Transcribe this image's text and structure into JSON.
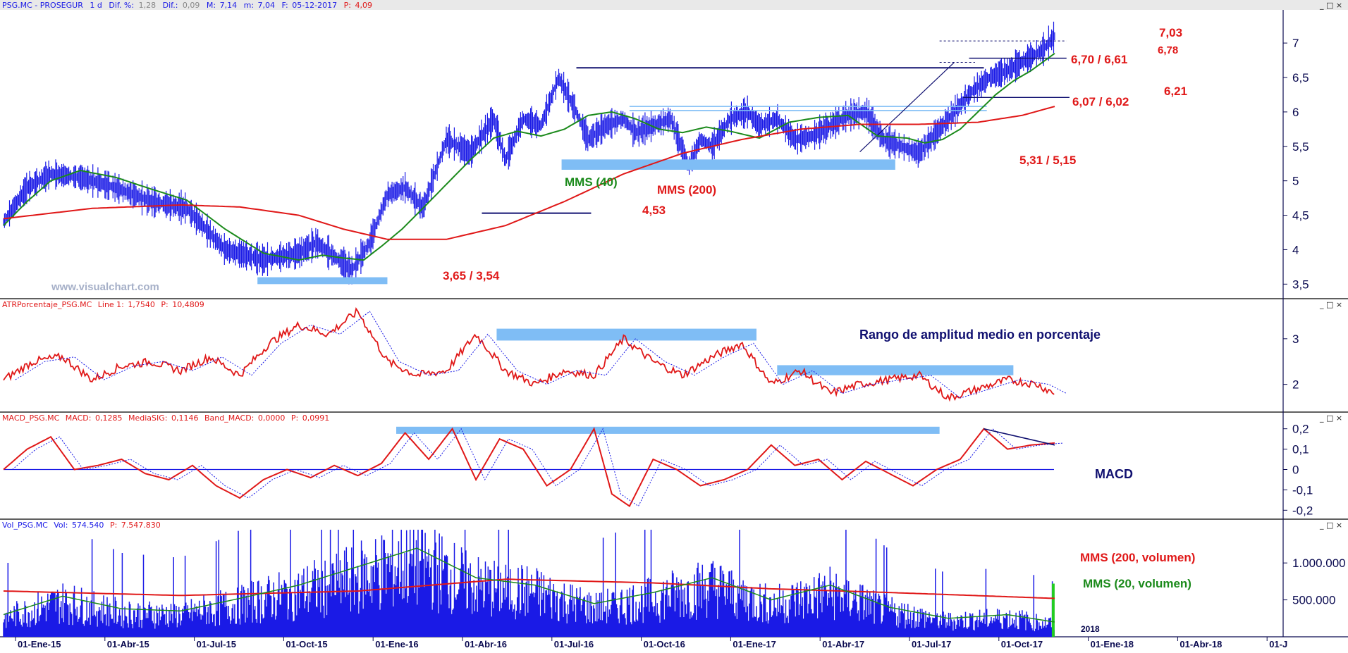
{
  "colors": {
    "price": "#1a1ae6",
    "mms_long": "#e01818",
    "mms_short": "#1b8a1b",
    "support": "#7fbdf5",
    "axis": "#0a0a50",
    "annotation_red": "#e01818",
    "annotation_green": "#1b8a1b",
    "annotation_navy": "#101070",
    "watermark": "#a6b0c8"
  },
  "chart_data": [
    {
      "type": "line",
      "header": {
        "symbol": "PSG.MC - PROSEGUR",
        "interval": "1 d",
        "dif_pct_label": "Dif. %:",
        "dif_pct": "1,28",
        "dif_label": "Dif.:",
        "dif": "0,09",
        "max_label": "M:",
        "max": "7,14",
        "min_label": "m:",
        "min": "7,04",
        "date_label": "F:",
        "date": "05-12-2017",
        "price_label": "P:",
        "price": "4,09"
      },
      "watermark": "www.visualchart.com",
      "y_ticks": [
        "3,5",
        "4",
        "4,5",
        "5",
        "5,5",
        "6",
        "6,5",
        "7"
      ],
      "ylim": [
        3.35,
        7.4
      ],
      "series": [
        {
          "name": "MMS (40)",
          "color": "#1b8a1b",
          "x": [
            0,
            8,
            16,
            26,
            38,
            50,
            62,
            75,
            88,
            100,
            108,
            115,
            122,
            128,
            135,
            142,
            150,
            158,
            166,
            174,
            182,
            190,
            198,
            206,
            214,
            222,
            230,
            238,
            246,
            256,
            266,
            276,
            286,
            296,
            306,
            312,
            318,
            324,
            330,
            336,
            342,
            348,
            356
          ],
          "values": [
            4.35,
            4.7,
            5.0,
            5.15,
            5.05,
            4.88,
            4.72,
            4.3,
            3.95,
            3.85,
            3.92,
            3.88,
            3.85,
            4.05,
            4.3,
            4.6,
            4.95,
            5.3,
            5.62,
            5.72,
            5.65,
            5.75,
            5.95,
            6.0,
            5.9,
            5.75,
            5.7,
            5.78,
            5.72,
            5.62,
            5.85,
            5.92,
            5.95,
            5.65,
            5.62,
            5.55,
            5.6,
            5.75,
            6.0,
            6.25,
            6.45,
            6.6,
            6.85
          ]
        },
        {
          "name": "MMS (200)",
          "color": "#e01818",
          "x": [
            0,
            30,
            60,
            80,
            100,
            115,
            130,
            150,
            170,
            190,
            210,
            230,
            250,
            270,
            290,
            310,
            330,
            345,
            356
          ],
          "values": [
            4.45,
            4.6,
            4.65,
            4.62,
            4.5,
            4.3,
            4.15,
            4.15,
            4.35,
            4.7,
            5.1,
            5.4,
            5.6,
            5.75,
            5.82,
            5.82,
            5.85,
            5.95,
            6.08
          ]
        }
      ],
      "annotations": {
        "mms40_label": "MMS (40)",
        "mms200_label": "MMS (200)",
        "lvl_703": "7,03",
        "lvl_678": "6,78",
        "lvl_670_661": "6,70 / 6,61",
        "lvl_621": "6,21",
        "lvl_607_602": "6,07 / 6,02",
        "lvl_531_515": "5,31 / 5,15",
        "lvl_453": "4,53",
        "lvl_365_354": "3,65 / 3,54"
      }
    },
    {
      "type": "line",
      "header": {
        "title": "ATRPorcentaje_PSG.MC",
        "line_label": "Line 1:",
        "line_value": "1,7540",
        "price_label": "P:",
        "price": "10,4809"
      },
      "annotation": "Rango de amplitud medio en porcentaje",
      "y_ticks": [
        "2",
        "3"
      ],
      "ylim": [
        1.5,
        3.6
      ],
      "series": [
        {
          "name": "Line 1",
          "color": "#e01818",
          "x": [
            0,
            10,
            20,
            30,
            40,
            50,
            60,
            70,
            80,
            90,
            100,
            110,
            120,
            130,
            140,
            150,
            160,
            170,
            180,
            190,
            200,
            210,
            220,
            230,
            240,
            250,
            260,
            270,
            280,
            290,
            300,
            310,
            320,
            330,
            340,
            350,
            356
          ],
          "values": [
            2.1,
            2.5,
            2.6,
            2.1,
            2.4,
            2.5,
            2.3,
            2.6,
            2.2,
            2.9,
            3.3,
            3.1,
            3.6,
            2.5,
            2.2,
            2.3,
            3.1,
            2.3,
            2.0,
            2.3,
            2.2,
            3.0,
            2.5,
            2.2,
            2.6,
            2.9,
            2.0,
            2.3,
            1.8,
            2.0,
            2.1,
            2.2,
            1.7,
            1.9,
            2.1,
            2.0,
            1.8
          ]
        }
      ]
    },
    {
      "type": "line",
      "header": {
        "title": "MACD_PSG.MC",
        "macd_label": "MACD:",
        "macd": "0,1285",
        "signal_label": "MediaSIG:",
        "signal": "0,1146",
        "band_label": "Band_MACD:",
        "band": "0,0000",
        "price_label": "P:",
        "price": "0,0991"
      },
      "annotation": "MACD",
      "y_ticks": [
        "-0,2",
        "-0,1",
        "0",
        "0,1",
        "0,2"
      ],
      "ylim": [
        -0.23,
        0.23
      ],
      "series": [
        {
          "name": "MACD",
          "color": "#e01818",
          "x": [
            0,
            8,
            16,
            24,
            32,
            40,
            48,
            56,
            64,
            72,
            80,
            88,
            96,
            104,
            112,
            120,
            128,
            136,
            144,
            152,
            160,
            168,
            176,
            184,
            192,
            200,
            206,
            212,
            220,
            228,
            236,
            244,
            252,
            260,
            268,
            276,
            284,
            292,
            300,
            308,
            316,
            324,
            332,
            340,
            348,
            356
          ],
          "values": [
            0.0,
            0.1,
            0.16,
            0.0,
            0.02,
            0.05,
            -0.02,
            -0.05,
            0.02,
            -0.08,
            -0.14,
            -0.05,
            0.0,
            -0.04,
            0.02,
            -0.03,
            0.03,
            0.18,
            0.05,
            0.2,
            -0.05,
            0.15,
            0.1,
            -0.08,
            0.0,
            0.2,
            -0.12,
            -0.18,
            0.05,
            0.0,
            -0.08,
            -0.05,
            0.0,
            0.12,
            0.02,
            0.05,
            -0.05,
            0.04,
            -0.02,
            -0.08,
            0.0,
            0.05,
            0.2,
            0.1,
            0.12,
            0.13
          ]
        }
      ]
    },
    {
      "type": "bar",
      "header": {
        "title": "Vol_PSG.MC",
        "vol_label": "Vol:",
        "vol": "574.540",
        "price_label": "P:",
        "price": "7.547.830"
      },
      "y_ticks": [
        "500.000",
        "1.000.000"
      ],
      "ylim": [
        0,
        1450000
      ],
      "series": [
        {
          "name": "MMS (200, volumen)",
          "color": "#e01818",
          "x": [
            0,
            60,
            120,
            170,
            220,
            260,
            300,
            356
          ],
          "values": [
            620000,
            560000,
            620000,
            780000,
            730000,
            650000,
            600000,
            520000
          ]
        },
        {
          "name": "MMS (20, volumen)",
          "color": "#1b8a1b",
          "x": [
            0,
            20,
            40,
            60,
            80,
            100,
            120,
            140,
            160,
            180,
            200,
            220,
            240,
            260,
            280,
            300,
            320,
            340,
            356
          ],
          "values": [
            300000,
            550000,
            380000,
            350000,
            520000,
            700000,
            950000,
            1200000,
            800000,
            700000,
            450000,
            600000,
            800000,
            500000,
            700000,
            400000,
            250000,
            300000,
            200000
          ]
        }
      ],
      "annotations": {
        "mms200_label": "MMS (200, volumen)",
        "mms20_label": "MMS (20, volumen)",
        "year_label": "2018"
      }
    }
  ],
  "x_axis": {
    "labels": [
      "01-Ene-15",
      "01-Abr-15",
      "01-Jul-15",
      "01-Oct-15",
      "01-Ene-16",
      "01-Abr-16",
      "01-Jul-16",
      "01-Oct-16",
      "01-Ene-17",
      "01-Abr-17",
      "01-Jul-17",
      "01-Oct-17",
      "01-Ene-18",
      "01-Abr-18",
      "01-J"
    ]
  },
  "panels": {
    "price": {
      "window_controls": "_ □ ×"
    },
    "atr": {
      "window_controls": "_ □ ×"
    },
    "macd": {
      "window_controls": "_ □ ×"
    },
    "volume": {
      "window_controls": "_ □ ×"
    }
  }
}
